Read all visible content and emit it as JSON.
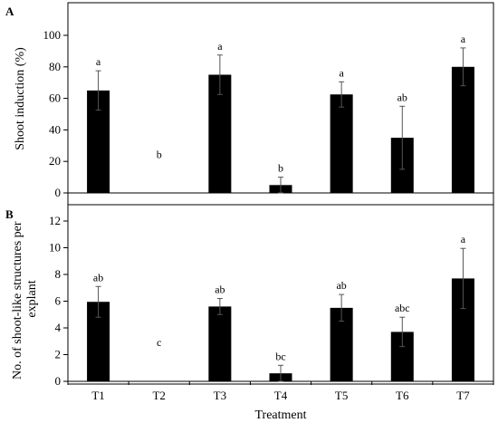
{
  "chart_data": [
    {
      "type": "bar",
      "panel_label": "A",
      "ylabel": "Shoot induction (%)",
      "ylim": [
        0,
        100
      ],
      "yticks": [
        0,
        20,
        40,
        60,
        80,
        100
      ],
      "categories": [
        "T1",
        "T2",
        "T3",
        "T4",
        "T5",
        "T6",
        "T7"
      ],
      "values": [
        65,
        0,
        75,
        5,
        62.5,
        35,
        80
      ],
      "errors": [
        12.5,
        0,
        12.5,
        5,
        8,
        20,
        12
      ],
      "letters": [
        "a",
        "b",
        "a",
        "b",
        "a",
        "ab",
        "a"
      ],
      "bar_color": "#000000"
    },
    {
      "type": "bar",
      "panel_label": "B",
      "ylabel": "No. of shoot-like structures per explant",
      "ylabel_lines": [
        "No. of shoot-like structures per",
        "explant"
      ],
      "xlabel": "Treatment",
      "ylim": [
        0,
        12
      ],
      "yticks": [
        0,
        2,
        4,
        6,
        8,
        10,
        12
      ],
      "categories": [
        "T1",
        "T2",
        "T3",
        "T4",
        "T5",
        "T6",
        "T7"
      ],
      "values": [
        5.95,
        0,
        5.6,
        0.6,
        5.5,
        3.7,
        7.7
      ],
      "errors": [
        1.15,
        0,
        0.6,
        0.6,
        1.0,
        1.1,
        2.25
      ],
      "letters": [
        "ab",
        "c",
        "ab",
        "bc",
        "ab",
        "abc",
        "a"
      ],
      "bar_color": "#000000"
    }
  ]
}
